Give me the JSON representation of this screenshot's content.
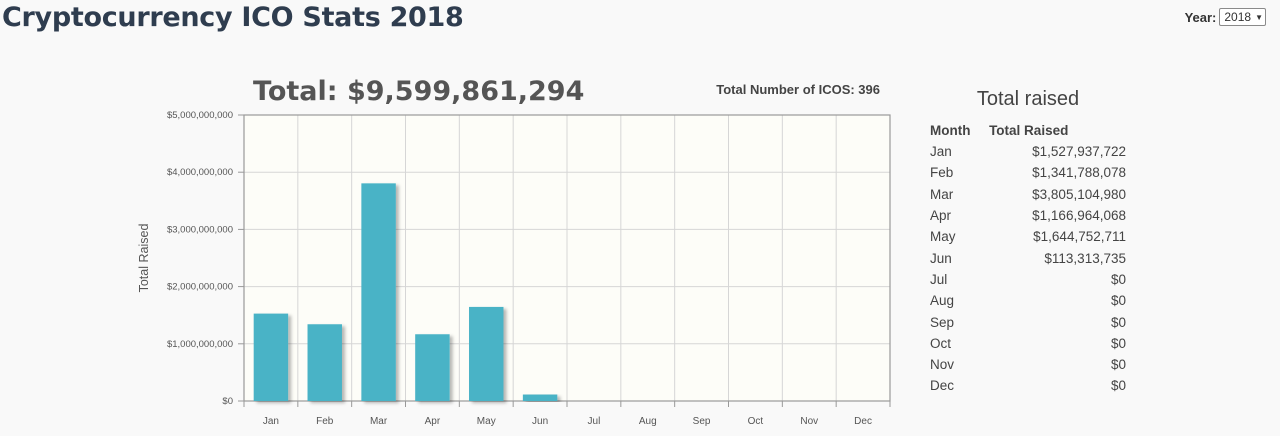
{
  "page_title": "Cryptocurrency ICO Stats 2018",
  "year_picker": {
    "label": "Year:",
    "selected": "2018",
    "arrow": "▼"
  },
  "chart_header": {
    "total": "Total: $9,599,861,294",
    "count": "Total Number of ICOS: 396"
  },
  "chart_data": {
    "type": "bar",
    "categories": [
      "Jan",
      "Feb",
      "Mar",
      "Apr",
      "May",
      "Jun",
      "Jul",
      "Aug",
      "Sep",
      "Oct",
      "Nov",
      "Dec"
    ],
    "values": [
      1527937722,
      1341788078,
      3805104980,
      1166964068,
      1644752711,
      113313735,
      0,
      0,
      0,
      0,
      0,
      0
    ],
    "ylabel": "Total Raised",
    "xlabel": "",
    "ylim": [
      0,
      5000000000
    ],
    "y_ticks": [
      "$0",
      "$1,000,000,000",
      "$2,000,000,000",
      "$3,000,000,000",
      "$4,000,000,000",
      "$5,000,000,000"
    ],
    "grid": true,
    "bar_color": "#4ab3c6",
    "plot_background": "#fdfdf8"
  },
  "table": {
    "title": "Total raised",
    "headers": [
      "Month",
      "Total Raised"
    ],
    "rows": [
      [
        "Jan",
        "$1,527,937,722"
      ],
      [
        "Feb",
        "$1,341,788,078"
      ],
      [
        "Mar",
        "$3,805,104,980"
      ],
      [
        "Apr",
        "$1,166,964,068"
      ],
      [
        "May",
        "$1,644,752,711"
      ],
      [
        "Jun",
        "$113,313,735"
      ],
      [
        "Jul",
        "$0"
      ],
      [
        "Aug",
        "$0"
      ],
      [
        "Sep",
        "$0"
      ],
      [
        "Oct",
        "$0"
      ],
      [
        "Nov",
        "$0"
      ],
      [
        "Dec",
        "$0"
      ]
    ]
  }
}
